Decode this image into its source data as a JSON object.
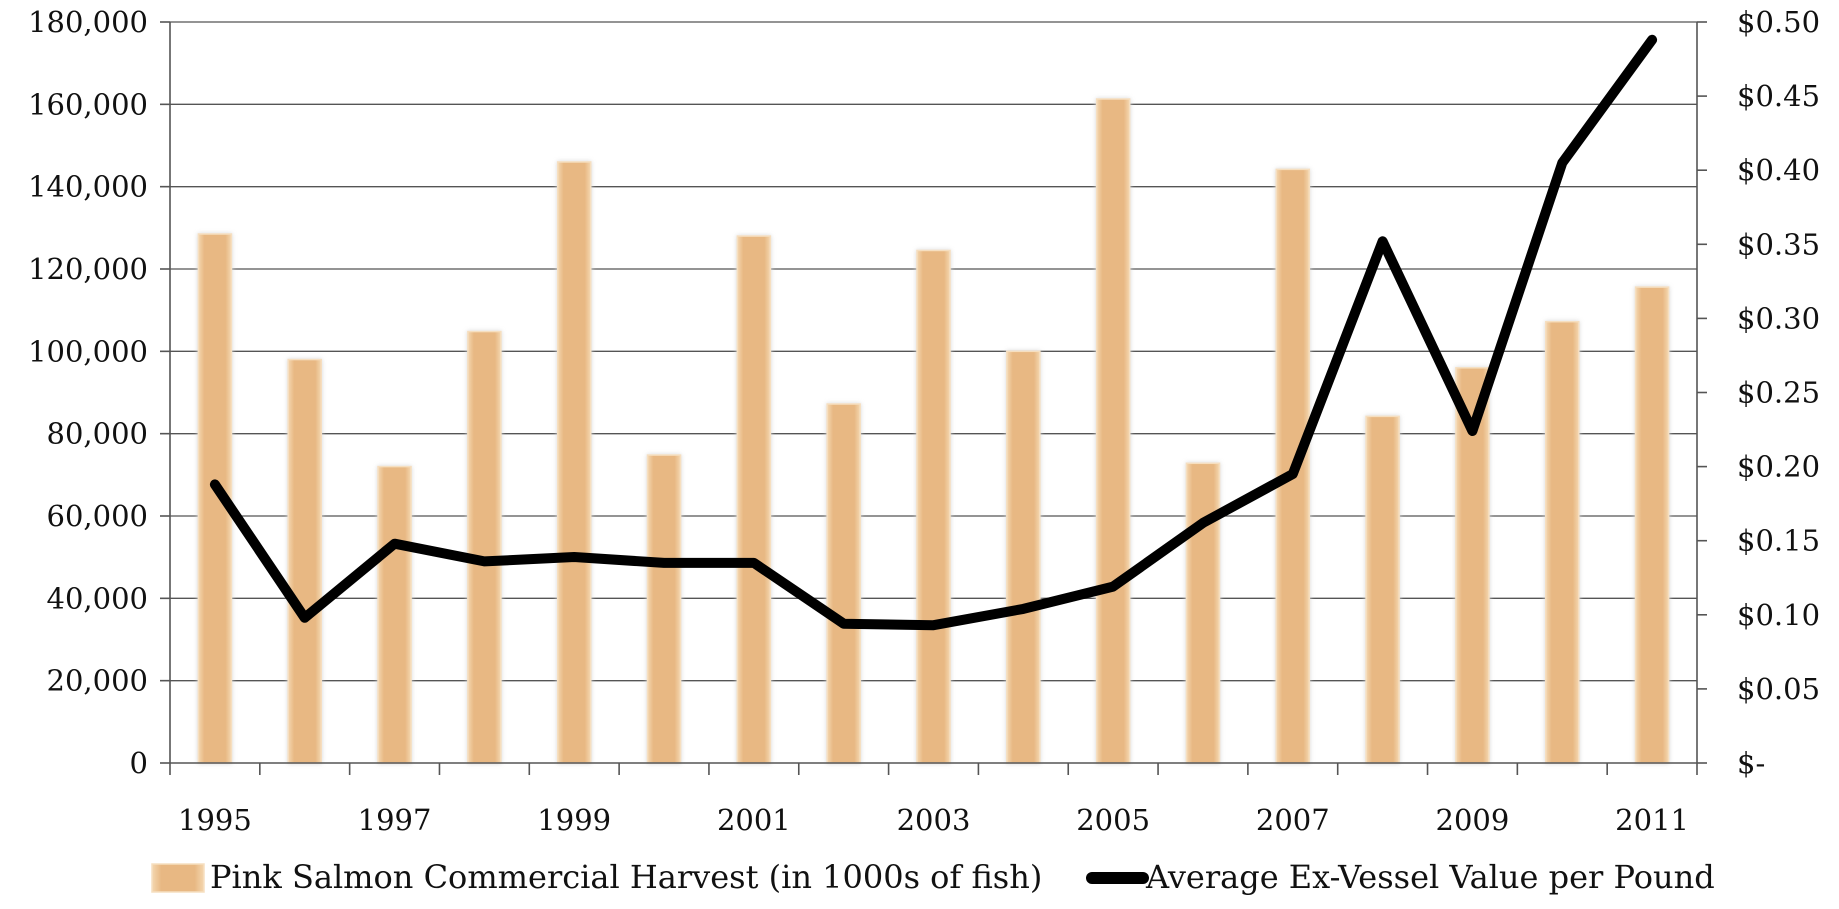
{
  "chart_data": {
    "type": "bar",
    "categories": [
      "1995",
      "1996",
      "1997",
      "1998",
      "1999",
      "2000",
      "2001",
      "2002",
      "2003",
      "2004",
      "2005",
      "2006",
      "2007",
      "2008",
      "2009",
      "2010",
      "2011"
    ],
    "x_tick_labels": [
      "1995",
      "",
      "1997",
      "",
      "1999",
      "",
      "2001",
      "",
      "2003",
      "",
      "2005",
      "",
      "2007",
      "",
      "2009",
      "",
      "2011"
    ],
    "series": [
      {
        "name": "Pink Salmon Commercial Harvest (in 1000s of fish)",
        "type": "bar",
        "axis": "left",
        "color": "#e8b883",
        "values": [
          128500,
          98000,
          72000,
          104800,
          146000,
          74800,
          128000,
          87200,
          124500,
          100000,
          161300,
          72800,
          144200,
          84200,
          96000,
          107200,
          115600
        ]
      },
      {
        "name": "Average Ex-Vessel Value per Pound",
        "type": "line",
        "axis": "right",
        "color": "#000000",
        "values": [
          0.188,
          0.098,
          0.148,
          0.136,
          0.139,
          0.135,
          0.135,
          0.094,
          0.093,
          0.104,
          0.119,
          0.162,
          0.195,
          0.352,
          0.224,
          0.405,
          0.488
        ]
      }
    ],
    "y_left": {
      "range": [
        0,
        180000
      ],
      "ticks": [
        0,
        20000,
        40000,
        60000,
        80000,
        100000,
        120000,
        140000,
        160000,
        180000
      ],
      "tick_labels": [
        "0",
        "20,000",
        "40,000",
        "60,000",
        "80,000",
        "100,000",
        "120,000",
        "140,000",
        "160,000",
        "180,000"
      ]
    },
    "y_right": {
      "range": [
        0,
        0.5
      ],
      "ticks": [
        0,
        0.05,
        0.1,
        0.15,
        0.2,
        0.25,
        0.3,
        0.35,
        0.4,
        0.45,
        0.5
      ],
      "tick_labels": [
        "$-",
        "$0.05",
        "$0.10",
        "$0.15",
        "$0.20",
        "$0.25",
        "$0.30",
        "$0.35",
        "$0.40",
        "$0.45",
        "$0.50"
      ]
    },
    "grid": true,
    "legend": {
      "placement": "bottom",
      "entries": [
        {
          "label": "Pink Salmon Commercial Harvest (in 1000s of fish)",
          "color": "#e8b883",
          "marker": "bar"
        },
        {
          "label": "Average Ex-Vessel Value per Pound",
          "color": "#000000",
          "marker": "line"
        }
      ]
    }
  }
}
